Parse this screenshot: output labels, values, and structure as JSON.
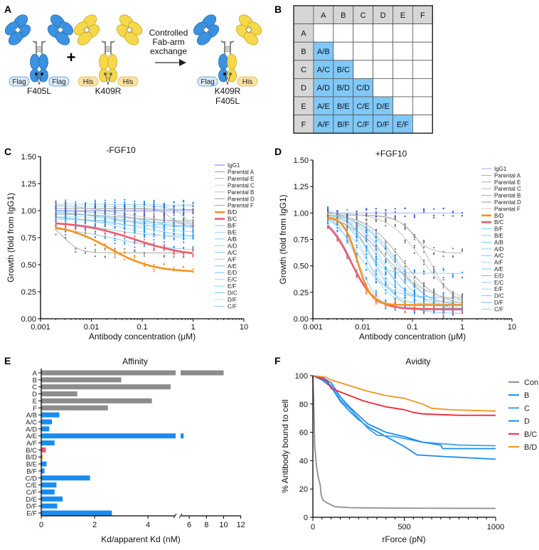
{
  "panel_labels": {
    "a": "A",
    "b": "B",
    "c": "C",
    "d": "D",
    "e": "E",
    "f": "F"
  },
  "panel_a": {
    "parent1_label": "F405L",
    "parent2_label": "K409R",
    "product_label_1": "K409R",
    "product_label_2": "F405L",
    "tag_flag": "Flag",
    "tag_his": "His",
    "plus": "+",
    "arrow_text": [
      "Controlled",
      "Fab-arm",
      "exchange"
    ],
    "colors": {
      "blue": "#3a92e0",
      "yellow": "#f6d84a",
      "flag_fill": "#dceaf9",
      "his_fill": "#fbe2a4"
    }
  },
  "panel_b": {
    "columns": [
      "A",
      "B",
      "C",
      "D",
      "E",
      "F"
    ],
    "rows": [
      {
        "label": "A",
        "cells": [
          "",
          "",
          "",
          "",
          "",
          ""
        ]
      },
      {
        "label": "B",
        "cells": [
          "A/B",
          "",
          "",
          "",
          "",
          ""
        ]
      },
      {
        "label": "C",
        "cells": [
          "A/C",
          "B/C",
          "",
          "",
          "",
          ""
        ]
      },
      {
        "label": "D",
        "cells": [
          "A/D",
          "B/D",
          "C/D",
          "",
          "",
          ""
        ]
      },
      {
        "label": "E",
        "cells": [
          "A/E",
          "B/E",
          "C/E",
          "D/E",
          "",
          ""
        ]
      },
      {
        "label": "F",
        "cells": [
          "A/F",
          "B/F",
          "C/F",
          "D/F",
          "E/F",
          ""
        ]
      }
    ],
    "colors": {
      "header": "#d6d6d6",
      "filled": "#80c8f7"
    }
  },
  "chart_data": [
    {
      "id": "c",
      "type": "line",
      "title": "-FGF10",
      "xlabel": "Antibody concentration (μM)",
      "ylabel": "Growth (fold from IgG1)",
      "xscale": "log",
      "xlim": [
        0.001,
        10
      ],
      "ylim": [
        0,
        1.5
      ],
      "xticks": [
        "0.001",
        "0.01",
        "0.1",
        "1",
        "10"
      ],
      "yticks": [
        "0.00",
        "0.25",
        "0.50",
        "0.75",
        "1.00",
        "1.25",
        "1.50"
      ],
      "legend": "right",
      "concentrations": [
        0.002,
        0.0031,
        0.0049,
        0.0076,
        0.0119,
        0.0186,
        0.029,
        0.045,
        0.071,
        0.11,
        0.17,
        0.27,
        0.42,
        0.65,
        1.0
      ],
      "series": [
        {
          "name": "IgG1",
          "color": "#6a7ff0",
          "top": 1.0,
          "bottom": 1.0,
          "ec50": 0.1,
          "hill": 1
        },
        {
          "name": "Parental A",
          "color": "#9a9a9a",
          "top": 0.88,
          "bottom": 0.61,
          "ec50": 0.003,
          "hill": 3
        },
        {
          "name": "Parental E",
          "color": "#a8a8a8",
          "top": 1.02,
          "bottom": 0.86,
          "ec50": 0.35,
          "hill": 4
        },
        {
          "name": "Parental C",
          "color": "#cfcfcf",
          "top": 1.0,
          "bottom": 0.98,
          "ec50": 0.1,
          "hill": 1
        },
        {
          "name": "Parental B",
          "color": "#bdbdbd",
          "top": 1.08,
          "bottom": 0.85,
          "ec50": 0.05,
          "hill": 0.6
        },
        {
          "name": "Parental D",
          "color": "#a0a0a0",
          "top": 1.02,
          "bottom": 1.01,
          "ec50": 0.1,
          "hill": 1
        },
        {
          "name": "Parental F",
          "color": "#9a9a9a",
          "top": 0.97,
          "bottom": 0.9,
          "ec50": 0.05,
          "hill": 1
        },
        {
          "name": "B/D",
          "color": "#f7931e",
          "top": 0.88,
          "bottom": 0.43,
          "ec50": 0.022,
          "hill": 1.0,
          "bold": true
        },
        {
          "name": "B/C",
          "color": "#f05a6e",
          "top": 0.9,
          "bottom": 0.57,
          "ec50": 0.07,
          "hill": 0.8,
          "bold": true
        },
        {
          "name": "B/F",
          "color": "#7cc6f2",
          "top": 0.9,
          "bottom": 0.76,
          "ec50": 0.02,
          "hill": 1
        },
        {
          "name": "B/E",
          "color": "#a6d8f5",
          "top": 0.95,
          "bottom": 0.72,
          "ec50": 0.05,
          "hill": 0.8
        },
        {
          "name": "A/B",
          "color": "#7cc6f2",
          "top": 1.0,
          "bottom": 0.86,
          "ec50": 0.02,
          "hill": 1
        },
        {
          "name": "A/D",
          "color": "#8ccdf3",
          "top": 0.96,
          "bottom": 0.85,
          "ec50": 0.01,
          "hill": 1
        },
        {
          "name": "A/C",
          "color": "#7cc6f2",
          "top": 1.04,
          "bottom": 0.7,
          "ec50": 0.9,
          "hill": 3
        },
        {
          "name": "A/F",
          "color": "#99d2f4",
          "top": 0.92,
          "bottom": 0.88,
          "ec50": 0.05,
          "hill": 1
        },
        {
          "name": "A/E",
          "color": "#7cc6f2",
          "top": 0.86,
          "bottom": 0.62,
          "ec50": 0.03,
          "hill": 0.7
        },
        {
          "name": "E/D",
          "color": "#6fbff0",
          "top": 1.0,
          "bottom": 0.83,
          "ec50": 0.1,
          "hill": 1
        },
        {
          "name": "E/C",
          "color": "#a6d8f5",
          "top": 0.95,
          "bottom": 0.88,
          "ec50": 0.05,
          "hill": 1
        },
        {
          "name": "E/F",
          "color": "#8ccdf3",
          "top": 1.06,
          "bottom": 1.05,
          "ec50": 0.1,
          "hill": 1
        },
        {
          "name": "D/C",
          "color": "#7cc6f2",
          "top": 0.94,
          "bottom": 0.74,
          "ec50": 0.1,
          "hill": 0.8
        },
        {
          "name": "D/F",
          "color": "#b8e0f7",
          "top": 1.04,
          "bottom": 1.04,
          "ec50": 0.1,
          "hill": 1
        },
        {
          "name": "C/F",
          "color": "#8ccdf3",
          "top": 0.98,
          "bottom": 0.79,
          "ec50": 0.08,
          "hill": 1
        }
      ]
    },
    {
      "id": "d",
      "type": "line",
      "title": "+FGF10",
      "xlabel": "Antibody concentration (μM)",
      "ylabel": "Growth (fold from IgG1)",
      "xscale": "log",
      "xlim": [
        0.001,
        10
      ],
      "ylim": [
        0,
        1.5
      ],
      "xticks": [
        "0.001",
        "0.01",
        "0.1",
        "1",
        "10"
      ],
      "yticks": [
        "0.00",
        "0.25",
        "0.50",
        "0.75",
        "1.00",
        "1.25",
        "1.50"
      ],
      "legend": "right",
      "concentrations": [
        0.002,
        0.0031,
        0.0049,
        0.0076,
        0.0119,
        0.0186,
        0.029,
        0.045,
        0.071,
        0.11,
        0.17,
        0.27,
        0.42,
        0.65,
        1.0
      ],
      "series": [
        {
          "name": "IgG1",
          "color": "#9aa8f6",
          "top": 1.0,
          "bottom": 1.0,
          "ec50": 0.1,
          "hill": 1
        },
        {
          "name": "Parental A",
          "color": "#a8a8a8",
          "top": 0.98,
          "bottom": 0.62,
          "ec50": 0.1,
          "hill": 2.5
        },
        {
          "name": "Parental E",
          "color": "#b0b0b0",
          "top": 0.98,
          "bottom": 0.12,
          "ec50": 0.22,
          "hill": 1.8
        },
        {
          "name": "Parental C",
          "color": "#bdbdbd",
          "top": 1.0,
          "bottom": 0.14,
          "ec50": 0.15,
          "hill": 1.3
        },
        {
          "name": "Parental B",
          "color": "#a8a8a8",
          "top": 1.0,
          "bottom": 0.15,
          "ec50": 0.03,
          "hill": 1.0
        },
        {
          "name": "Parental D",
          "color": "#9a9a9a",
          "top": 1.0,
          "bottom": 0.12,
          "ec50": 0.06,
          "hill": 1.2
        },
        {
          "name": "Parental F",
          "color": "#cfcfcf",
          "top": 1.0,
          "bottom": 0.16,
          "ec50": 0.045,
          "hill": 1.3
        },
        {
          "name": "B/D",
          "color": "#f7931e",
          "top": 0.97,
          "bottom": 0.13,
          "ec50": 0.0078,
          "hill": 3.2,
          "bold": true
        },
        {
          "name": "B/C",
          "color": "#f05a6e",
          "top": 0.99,
          "bottom": 0.09,
          "ec50": 0.0058,
          "hill": 1.8,
          "bold": true
        },
        {
          "name": "B/F",
          "color": "#7cc6f2",
          "top": 0.98,
          "bottom": 0.1,
          "ec50": 0.006,
          "hill": 2
        },
        {
          "name": "B/E",
          "color": "#8ccdf3",
          "top": 1.0,
          "bottom": 0.08,
          "ec50": 0.008,
          "hill": 2
        },
        {
          "name": "A/B",
          "color": "#7cc6f2",
          "top": 1.02,
          "bottom": 0.43,
          "ec50": 0.01,
          "hill": 2.5
        },
        {
          "name": "A/D",
          "color": "#99d2f4",
          "top": 1.0,
          "bottom": 0.12,
          "ec50": 0.012,
          "hill": 1.5
        },
        {
          "name": "A/C",
          "color": "#7cc6f2",
          "top": 1.02,
          "bottom": 0.15,
          "ec50": 0.02,
          "hill": 1.4
        },
        {
          "name": "A/F",
          "color": "#a6d8f5",
          "top": 1.0,
          "bottom": 0.2,
          "ec50": 0.015,
          "hill": 1.8
        },
        {
          "name": "A/E",
          "color": "#7cc6f2",
          "top": 1.05,
          "bottom": 0.08,
          "ec50": 0.03,
          "hill": 1.2
        },
        {
          "name": "E/D",
          "color": "#6fbff0",
          "top": 1.0,
          "bottom": 0.12,
          "ec50": 0.04,
          "hill": 1.3
        },
        {
          "name": "E/C",
          "color": "#8ccdf3",
          "top": 1.0,
          "bottom": 0.06,
          "ec50": 0.05,
          "hill": 1.2
        },
        {
          "name": "E/F",
          "color": "#a6d8f5",
          "top": 1.0,
          "bottom": 0.1,
          "ec50": 0.025,
          "hill": 1.5
        },
        {
          "name": "D/C",
          "color": "#7cc6f2",
          "top": 1.03,
          "bottom": 0.2,
          "ec50": 0.008,
          "hill": 1.5
        },
        {
          "name": "D/F",
          "color": "#6fbff0",
          "top": 0.98,
          "bottom": 0.05,
          "ec50": 0.018,
          "hill": 1.6
        },
        {
          "name": "C/F",
          "color": "#99d2f4",
          "top": 1.0,
          "bottom": 0.14,
          "ec50": 0.012,
          "hill": 2
        }
      ]
    },
    {
      "id": "e",
      "type": "bar",
      "orientation": "horizontal",
      "title": "Affinity",
      "xlabel": "Kd/apparent Kd (nM)",
      "xlim": [
        0,
        12
      ],
      "axis_break": [
        5,
        5
      ],
      "xticks": [
        "0",
        "2",
        "4",
        "6",
        "8",
        "10",
        "12"
      ],
      "categories": [
        "A",
        "B",
        "C",
        "D",
        "E",
        "F",
        "A/B",
        "A/C",
        "A/D",
        "A/E",
        "A/F",
        "B/C",
        "B/D",
        "B/E",
        "B/F",
        "C/D",
        "C/E",
        "C/F",
        "D/E",
        "D/F",
        "E/F"
      ],
      "values": [
        10.0,
        3.0,
        4.85,
        1.35,
        4.15,
        2.5,
        0.68,
        0.4,
        0.3,
        5.35,
        0.5,
        0.17,
        0.05,
        0.2,
        0.12,
        1.83,
        0.57,
        0.5,
        0.8,
        0.6,
        2.65
      ],
      "colors": [
        "#8c8c8c",
        "#8c8c8c",
        "#8c8c8c",
        "#8c8c8c",
        "#8c8c8c",
        "#8c8c8c",
        "#1a8cf0",
        "#1a8cf0",
        "#1a8cf0",
        "#1a8cf0",
        "#1a8cf0",
        "#f05a6e",
        "#f7931e",
        "#1a8cf0",
        "#1a8cf0",
        "#1a8cf0",
        "#1a8cf0",
        "#1a8cf0",
        "#1a8cf0",
        "#1a8cf0",
        "#1a8cf0"
      ]
    },
    {
      "id": "f",
      "type": "line",
      "title": "Avidity",
      "xlabel": "rForce (pN)",
      "ylabel": "% Antibody bound to cell",
      "xlim": [
        0,
        1000
      ],
      "ylim": [
        0,
        100
      ],
      "xticks": [
        "0",
        "500",
        "1000"
      ],
      "yticks": [
        "0",
        "20",
        "40",
        "60",
        "80",
        "100"
      ],
      "legend": "right",
      "series": [
        {
          "name": "Con",
          "color": "#8f8f8f",
          "points": [
            [
              0,
              100
            ],
            [
              5,
              80
            ],
            [
              10,
              50
            ],
            [
              20,
              36
            ],
            [
              30,
              28
            ],
            [
              40,
              23
            ],
            [
              45,
              16
            ],
            [
              55,
              12
            ],
            [
              80,
              10
            ],
            [
              120,
              7.5
            ],
            [
              200,
              6.8
            ],
            [
              400,
              6.5
            ],
            [
              1000,
              6.3
            ]
          ]
        },
        {
          "name": "B",
          "color": "#1a8cf0",
          "points": [
            [
              0,
              100
            ],
            [
              50,
              97
            ],
            [
              100,
              92
            ],
            [
              150,
              82
            ],
            [
              200,
              75
            ],
            [
              250,
              69
            ],
            [
              300,
              64
            ],
            [
              400,
              57
            ],
            [
              500,
              50
            ],
            [
              570,
              44
            ],
            [
              700,
              43
            ],
            [
              850,
              42
            ],
            [
              1000,
              41
            ]
          ]
        },
        {
          "name": "C",
          "color": "#3aa0f2",
          "points": [
            [
              0,
              100
            ],
            [
              50,
              98
            ],
            [
              100,
              93
            ],
            [
              150,
              83
            ],
            [
              200,
              77
            ],
            [
              300,
              63
            ],
            [
              350,
              58
            ],
            [
              450,
              57
            ],
            [
              600,
              53
            ],
            [
              800,
              51
            ],
            [
              1000,
              50.5
            ]
          ]
        },
        {
          "name": "D",
          "color": "#1a8cf0",
          "points": [
            [
              0,
              100
            ],
            [
              50,
              99
            ],
            [
              100,
              95
            ],
            [
              150,
              85
            ],
            [
              200,
              78
            ],
            [
              300,
              66
            ],
            [
              400,
              60
            ],
            [
              500,
              57
            ],
            [
              600,
              53
            ],
            [
              700,
              51
            ],
            [
              710,
              48.5
            ],
            [
              1000,
              48.5
            ]
          ]
        },
        {
          "name": "B/C",
          "color": "#f0283c",
          "points": [
            [
              0,
              100
            ],
            [
              50,
              98
            ],
            [
              80,
              96
            ],
            [
              100,
              91
            ],
            [
              200,
              86
            ],
            [
              280,
              82
            ],
            [
              400,
              78
            ],
            [
              500,
              76
            ],
            [
              550,
              74
            ],
            [
              600,
              73
            ],
            [
              800,
              72
            ],
            [
              1000,
              72
            ]
          ]
        },
        {
          "name": "B/D",
          "color": "#f7931e",
          "points": [
            [
              0,
              100
            ],
            [
              70,
              99
            ],
            [
              100,
              97
            ],
            [
              200,
              93
            ],
            [
              300,
              89
            ],
            [
              400,
              86
            ],
            [
              500,
              84
            ],
            [
              600,
              80
            ],
            [
              650,
              77
            ],
            [
              750,
              76
            ],
            [
              1000,
              75
            ]
          ]
        }
      ]
    }
  ]
}
